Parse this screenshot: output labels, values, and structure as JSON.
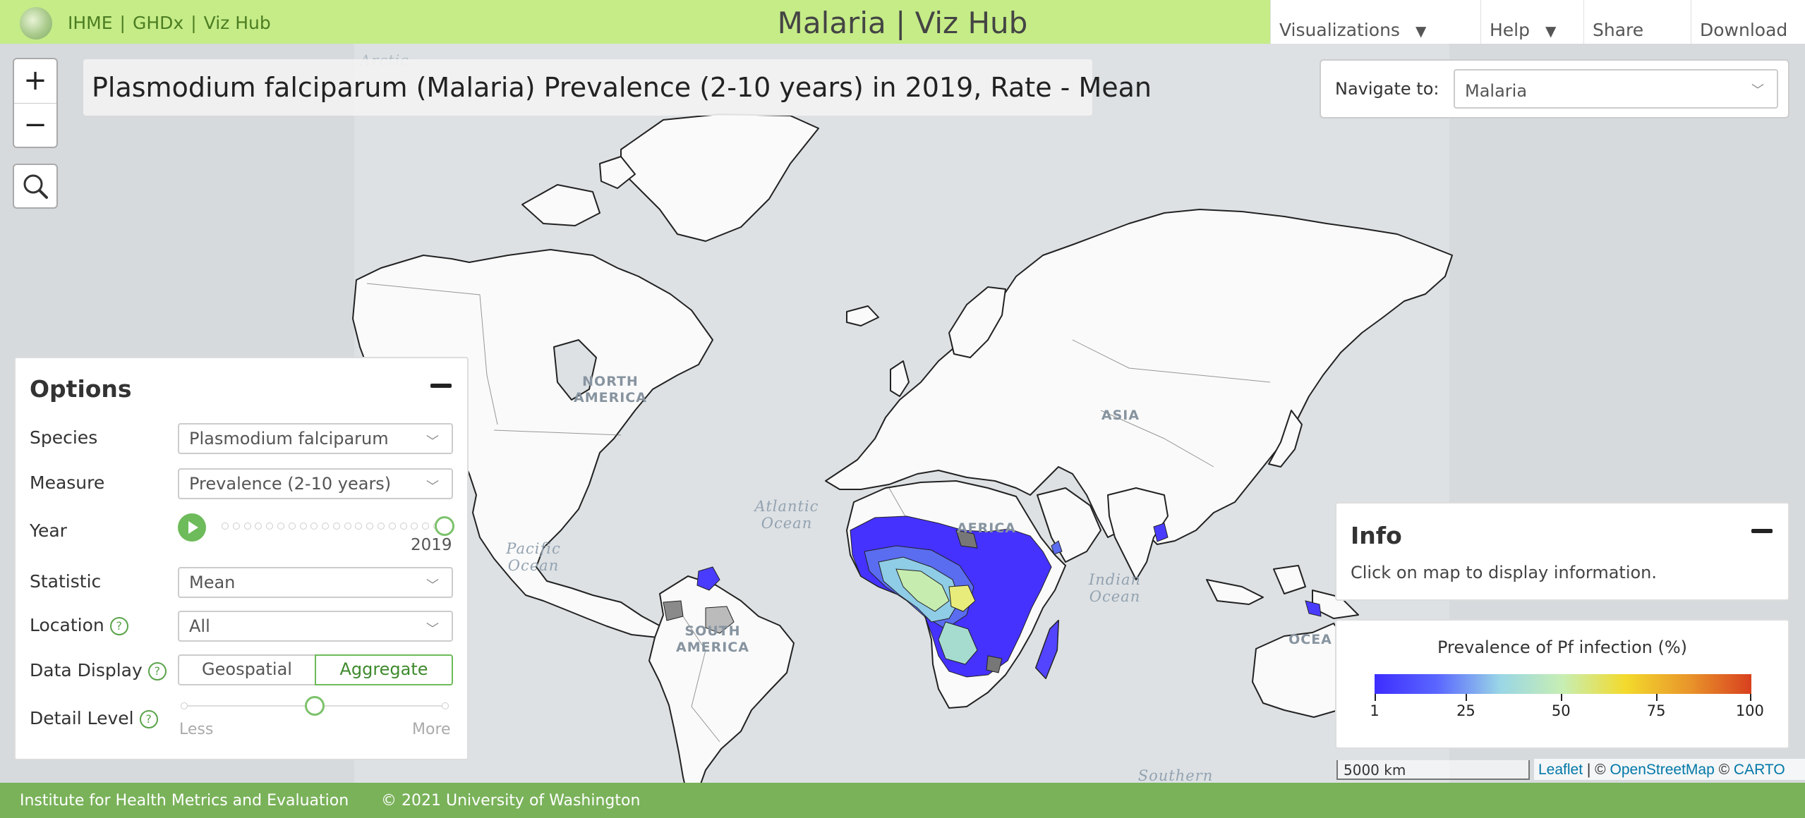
{
  "header": {
    "links": [
      "IHME",
      "GHDx",
      "Viz Hub"
    ],
    "title": "Malaria | Viz Hub",
    "nav": [
      {
        "label": "Visualizations",
        "caret": "▼"
      },
      {
        "label": "Help",
        "caret": "▼"
      },
      {
        "label": "Share"
      },
      {
        "label": "Download"
      }
    ]
  },
  "map_title": "Plasmodium falciparum (Malaria) Prevalence (2-10 years) in 2019, Rate - Mean",
  "navigate": {
    "label": "Navigate to:",
    "value": "Malaria"
  },
  "zoom": {
    "in": "+",
    "out": "−"
  },
  "options": {
    "title": "Options",
    "species": {
      "label": "Species",
      "value": "Plasmodium falciparum"
    },
    "measure": {
      "label": "Measure",
      "value": "Prevalence (2-10 years)"
    },
    "year": {
      "label": "Year",
      "value": "2019"
    },
    "statistic": {
      "label": "Statistic",
      "value": "Mean"
    },
    "location": {
      "label": "Location",
      "value": "All"
    },
    "data_display": {
      "label": "Data Display",
      "options": [
        "Geospatial",
        "Aggregate"
      ],
      "selected": "Aggregate"
    },
    "detail_level": {
      "label": "Detail Level",
      "min_label": "Less",
      "max_label": "More",
      "level": 0.5
    }
  },
  "info": {
    "title": "Info",
    "text": "Click on map to display information."
  },
  "legend": {
    "title": "Prevalence of Pf infection (%)",
    "ticks": [
      "1",
      "25",
      "50",
      "75",
      "100"
    ],
    "colors": [
      "#3d2dff",
      "#5a67ff",
      "#9ad6e6",
      "#c7eeb3",
      "#f3da2c",
      "#e9962b",
      "#d8401f"
    ]
  },
  "map_labels": {
    "north_america": "NORTH AMERICA",
    "south_america": "SOUTH AMERICA",
    "africa": "AFRICA",
    "asia": "ASIA",
    "oceania": "OCEA",
    "atlantic": "Atlantic Ocean",
    "pacific": "Pacific Ocean",
    "indian": "Indian Ocean",
    "southern": "Southern",
    "arctic": "Arctic"
  },
  "scale": "5000 km",
  "attribution": {
    "leaflet": "Leaflet",
    "sep1": " | © ",
    "osm": "OpenStreetMap",
    "sep2": " © ",
    "carto": "CARTO"
  },
  "footer": {
    "left": "Institute for Health Metrics and Evaluation",
    "right": "© 2021 University of Washington"
  }
}
